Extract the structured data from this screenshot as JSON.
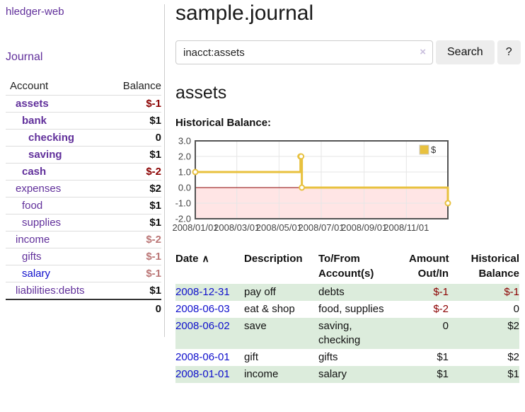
{
  "colors": {
    "link_purple": "#61309b",
    "link_blue": "#0f0fcc",
    "negative_strong": "#8b0000",
    "negative_soft": "#bb7676",
    "row_green": "#dcecdc",
    "chart_gold": "#e8c13e",
    "button_bg": "#ededed",
    "divider": "#cccccc",
    "table_border": "#dddddd",
    "text": "#111111"
  },
  "sidebar": {
    "brand": "hledger-web",
    "journal_link": "Journal",
    "accounts_table": {
      "headers": {
        "account": "Account",
        "balance": "Balance"
      },
      "rows": [
        {
          "name": "assets",
          "depth": 1,
          "bold": true,
          "blue": false,
          "balance": "$-1",
          "balance_class": "neg-strong"
        },
        {
          "name": "bank",
          "depth": 2,
          "bold": true,
          "blue": false,
          "balance": "$1",
          "balance_class": ""
        },
        {
          "name": "checking",
          "depth": 3,
          "bold": true,
          "blue": false,
          "balance": "0",
          "balance_class": ""
        },
        {
          "name": "saving",
          "depth": 3,
          "bold": true,
          "blue": false,
          "balance": "$1",
          "balance_class": ""
        },
        {
          "name": "cash",
          "depth": 2,
          "bold": true,
          "blue": false,
          "balance": "$-2",
          "balance_class": "neg-strong"
        },
        {
          "name": "expenses",
          "depth": 1,
          "bold": false,
          "blue": false,
          "balance": "$2",
          "balance_class": ""
        },
        {
          "name": "food",
          "depth": 2,
          "bold": false,
          "blue": false,
          "balance": "$1",
          "balance_class": ""
        },
        {
          "name": "supplies",
          "depth": 2,
          "bold": false,
          "blue": false,
          "balance": "$1",
          "balance_class": ""
        },
        {
          "name": "income",
          "depth": 1,
          "bold": false,
          "blue": false,
          "balance": "$-2",
          "balance_class": "neg-soft"
        },
        {
          "name": "gifts",
          "depth": 2,
          "bold": false,
          "blue": false,
          "balance": "$-1",
          "balance_class": "neg-soft"
        },
        {
          "name": "salary",
          "depth": 2,
          "bold": false,
          "blue": true,
          "balance": "$-1",
          "balance_class": "neg-soft"
        },
        {
          "name": "liabilities:debts",
          "depth": 1,
          "bold": false,
          "blue": false,
          "balance": "$1",
          "balance_class": ""
        }
      ],
      "total": "0"
    }
  },
  "header": {
    "title": "sample.journal"
  },
  "search": {
    "value": "inacct:assets",
    "clear_icon": "×",
    "button_label": "Search",
    "help_label": "?"
  },
  "account_page": {
    "title": "assets",
    "chart_label": "Historical Balance:"
  },
  "chart_data": {
    "type": "line",
    "step": true,
    "title": "Historical Balance:",
    "series": [
      {
        "name": "$",
        "color": "#e8c13e",
        "points": [
          [
            "2008-01-01",
            1
          ],
          [
            "2008-06-01",
            2
          ],
          [
            "2008-06-02",
            2
          ],
          [
            "2008-06-03",
            0
          ],
          [
            "2008-12-31",
            -1
          ]
        ]
      }
    ],
    "ylim": [
      -2,
      3
    ],
    "yticks": [
      3,
      2,
      1,
      0,
      -1,
      -2
    ],
    "xticks": [
      {
        "date": "2008-01-01",
        "label": "2008/01/01"
      },
      {
        "date": "2008-03-01",
        "label": "2008/03/01"
      },
      {
        "date": "2008-05-01",
        "label": "2008/05/01"
      },
      {
        "date": "2008-07-01",
        "label": "2008/07/01"
      },
      {
        "date": "2008-09-01",
        "label": "2008/09/01"
      },
      {
        "date": "2008-11-01",
        "label": "2008/11/01"
      }
    ],
    "x_range": [
      "2008-01-01",
      "2008-12-31"
    ],
    "grid": true,
    "legend_position": "top-right",
    "negative_fill": "rgba(255,0,0,0.10)",
    "zero_line_color": "#8b0000",
    "frame_color": "#545454",
    "grid_color": "#e6e6e6"
  },
  "register_table": {
    "headers": [
      "Date",
      "Description",
      "To/From Account(s)",
      "Amount Out/In",
      "Historical Balance"
    ],
    "sort_icon": "∧",
    "rows": [
      {
        "date": "2008-12-31",
        "description": "pay off",
        "accounts": "debts",
        "amount": "$-1",
        "amount_neg": true,
        "balance": "$-1",
        "balance_neg": true
      },
      {
        "date": "2008-06-03",
        "description": "eat & shop",
        "accounts": "food, supplies",
        "amount": "$-2",
        "amount_neg": true,
        "balance": "0",
        "balance_neg": false
      },
      {
        "date": "2008-06-02",
        "description": "save",
        "accounts": "saving,\nchecking",
        "amount": "0",
        "amount_neg": false,
        "balance": "$2",
        "balance_neg": false
      },
      {
        "date": "2008-06-01",
        "description": "gift",
        "accounts": "gifts",
        "amount": "$1",
        "amount_neg": false,
        "balance": "$2",
        "balance_neg": false
      },
      {
        "date": "2008-01-01",
        "description": "income",
        "accounts": "salary",
        "amount": "$1",
        "amount_neg": false,
        "balance": "$1",
        "balance_neg": false
      }
    ]
  }
}
